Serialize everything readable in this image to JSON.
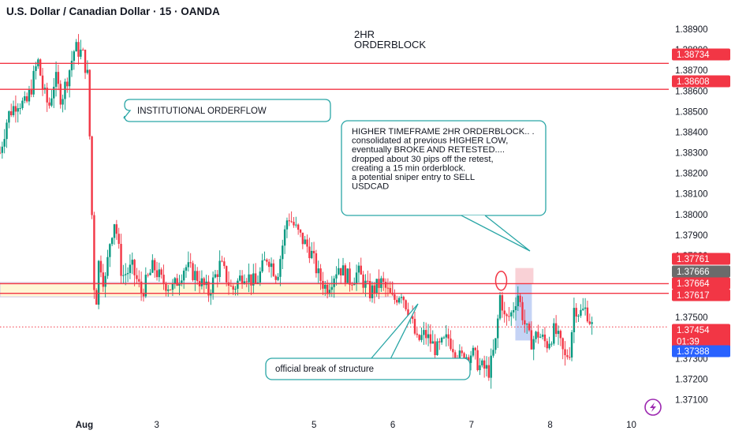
{
  "header": {
    "title": "U.S. Dollar / Canadian Dollar · 15 · OANDA"
  },
  "colors": {
    "up_candle": "#089981",
    "down_candle": "#f23645",
    "level_line": "#f23645",
    "zone_fill": "#fff7d6",
    "zone_border": "#cfc4e6",
    "annotation_border": "#2aa6a6",
    "bid_badge": "#f23645",
    "ask_badge": "#2962ff",
    "grey_badge": "#6b6b6b",
    "axis_text": "#131722",
    "lightning": "#9c27b0"
  },
  "chart_data": {
    "type": "candlestick",
    "title": "U.S. Dollar / Canadian Dollar · 15 · OANDA",
    "xlabel": "",
    "ylabel": "",
    "ylim": [
      1.3706,
      1.3895
    ],
    "x_ticks": [
      {
        "label": "Aug",
        "day": 2
      },
      {
        "label": "3",
        "day": 3
      },
      {
        "label": "5",
        "day": 5
      },
      {
        "label": "6",
        "day": 6
      },
      {
        "label": "7",
        "day": 7
      },
      {
        "label": "8",
        "day": 8
      },
      {
        "label": "10",
        "day": 9
      }
    ],
    "y_ticks": [
      "1.38900",
      "1.38800",
      "1.38700",
      "1.38600",
      "1.38500",
      "1.38400",
      "1.38300",
      "1.38200",
      "1.38100",
      "1.38000",
      "1.37900",
      "1.37800",
      "1.37700",
      "1.37600",
      "1.37500",
      "1.37400",
      "1.37300",
      "1.37200",
      "1.37100"
    ],
    "price_path": [
      [
        1.0,
        1.383
      ],
      [
        1.1,
        1.3848
      ],
      [
        1.22,
        1.3855
      ],
      [
        1.33,
        1.3853
      ],
      [
        1.4,
        1.3862
      ],
      [
        1.48,
        1.3875
      ],
      [
        1.55,
        1.386
      ],
      [
        1.62,
        1.3852
      ],
      [
        1.7,
        1.3867
      ],
      [
        1.78,
        1.3856
      ],
      [
        1.88,
        1.387
      ],
      [
        1.95,
        1.3881
      ],
      [
        2.05,
        1.3878
      ],
      [
        2.12,
        1.3866
      ],
      [
        2.16,
        1.381
      ],
      [
        2.21,
        1.375
      ],
      [
        2.26,
        1.378
      ],
      [
        2.33,
        1.3765
      ],
      [
        2.4,
        1.3788
      ],
      [
        2.46,
        1.3798
      ],
      [
        2.55,
        1.377
      ],
      [
        2.68,
        1.3774
      ],
      [
        2.8,
        1.3762
      ],
      [
        2.95,
        1.3775
      ],
      [
        3.05,
        1.3768
      ],
      [
        3.2,
        1.3764
      ],
      [
        3.35,
        1.3775
      ],
      [
        3.5,
        1.377
      ],
      [
        3.65,
        1.3762
      ],
      [
        3.8,
        1.3776
      ],
      [
        3.95,
        1.3763
      ],
      [
        4.1,
        1.3772
      ],
      [
        4.25,
        1.3766
      ],
      [
        4.4,
        1.378
      ],
      [
        4.52,
        1.377
      ],
      [
        4.66,
        1.38
      ],
      [
        4.8,
        1.379
      ],
      [
        4.95,
        1.3782
      ],
      [
        5.05,
        1.377
      ],
      [
        5.15,
        1.3764
      ],
      [
        5.3,
        1.3775
      ],
      [
        5.45,
        1.3768
      ],
      [
        5.55,
        1.3772
      ],
      [
        5.7,
        1.3762
      ],
      [
        5.85,
        1.3767
      ],
      [
        6.0,
        1.3758
      ],
      [
        6.1,
        1.3763
      ],
      [
        6.22,
        1.375
      ],
      [
        6.3,
        1.3738
      ],
      [
        6.4,
        1.3742
      ],
      [
        6.55,
        1.3734
      ],
      [
        6.7,
        1.374
      ],
      [
        6.85,
        1.373
      ],
      [
        7.0,
        1.3733
      ],
      [
        7.1,
        1.3726
      ],
      [
        7.22,
        1.3724
      ],
      [
        7.3,
        1.3738
      ],
      [
        7.36,
        1.3762
      ],
      [
        7.42,
        1.3748
      ],
      [
        7.5,
        1.3752
      ],
      [
        7.58,
        1.3762
      ],
      [
        7.66,
        1.3748
      ],
      [
        7.74,
        1.3738
      ],
      [
        7.84,
        1.3742
      ],
      [
        7.95,
        1.3737
      ],
      [
        8.05,
        1.3744
      ],
      [
        8.12,
        1.3737
      ],
      [
        8.18,
        1.373
      ],
      [
        8.24,
        1.3734
      ],
      [
        8.3,
        1.3756
      ],
      [
        8.37,
        1.3752
      ],
      [
        8.45,
        1.3754
      ],
      [
        8.53,
        1.3745
      ]
    ],
    "horizontal_levels": [
      {
        "price": 1.38734,
        "label": "1.38734",
        "style": "solid"
      },
      {
        "price": 1.38608,
        "label": "1.38608",
        "style": "solid"
      },
      {
        "price": 1.37664,
        "label": "1.37664",
        "style": "solid"
      },
      {
        "price": 1.37617,
        "label": "1.37617",
        "style": "solid"
      },
      {
        "price": 1.37454,
        "label": "1.37454",
        "style": "dotted"
      }
    ],
    "price_badges": [
      {
        "label": "1.37761",
        "price": 1.37761,
        "kind": "red"
      },
      {
        "label": "1.37666",
        "price": 1.37666,
        "kind": "grey"
      },
      {
        "label": "1.37664",
        "price": 1.37664,
        "kind": "red"
      },
      {
        "label": "1.37617",
        "price": 1.37617,
        "kind": "red"
      },
      {
        "label": "1.37454",
        "price": 1.37454,
        "kind": "red",
        "sub": "01:39"
      },
      {
        "label": "1.37388",
        "price": 1.37388,
        "kind": "blue"
      }
    ],
    "zones": [
      {
        "name": "support-zone",
        "x0": 1.0,
        "x1": 6.0,
        "y0": 1.376,
        "y1": 1.3767
      },
      {
        "name": "supply-box-red",
        "x0": 7.55,
        "x1": 7.78,
        "y0": 1.37664,
        "y1": 1.3774
      },
      {
        "name": "supply-box-blue",
        "x0": 7.55,
        "x1": 7.76,
        "y0": 1.37388,
        "y1": 1.37664
      }
    ],
    "annotations": {
      "orderblock_title": "2HR\nORDERBLOCK",
      "orderflow": "INSTITUTIONAL ORDERFLOW",
      "higher_tf": "HIGHER TIMEFRAME 2HR ORDERBLOCK.. .\nconsolidated at previous HIGHER LOW, eventually BROKE AND RETESTED.... dropped about 30 pips off the retest, creating a 15 min orderblock.\n\na potential sniper entry to SELL USDCAD",
      "break": "official break of structure"
    }
  }
}
